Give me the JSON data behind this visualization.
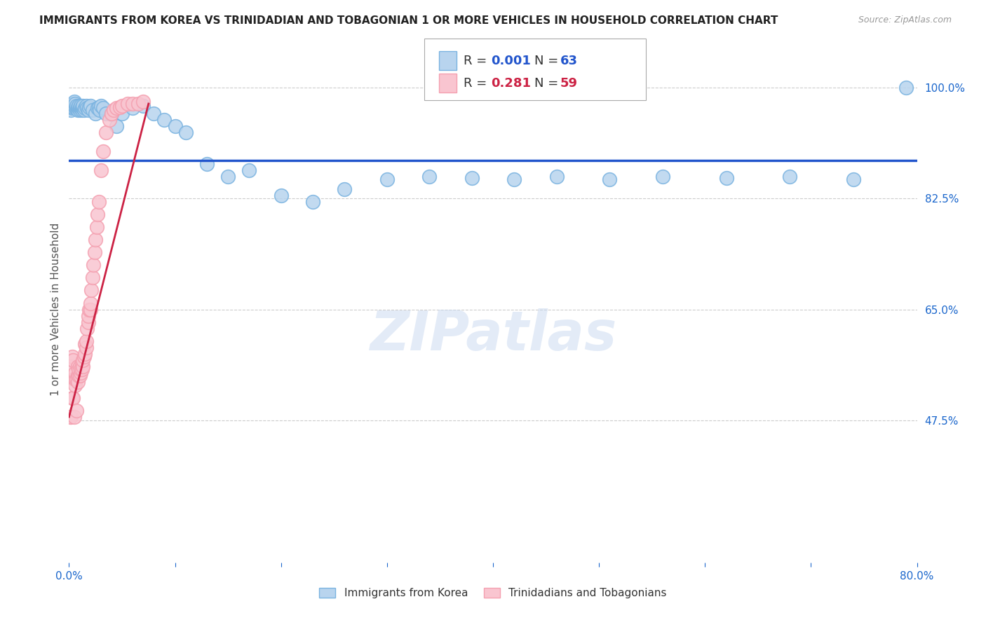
{
  "title": "IMMIGRANTS FROM KOREA VS TRINIDADIAN AND TOBAGONIAN 1 OR MORE VEHICLES IN HOUSEHOLD CORRELATION CHART",
  "source": "Source: ZipAtlas.com",
  "ylabel": "1 or more Vehicles in Household",
  "ytick_labels": [
    "100.0%",
    "82.5%",
    "65.0%",
    "47.5%"
  ],
  "ytick_values": [
    1.0,
    0.825,
    0.65,
    0.475
  ],
  "watermark": "ZIPatlas",
  "korea_color_face": "#b8d4ee",
  "korea_color_edge": "#7ab3e0",
  "trini_color_face": "#f9c5d0",
  "trini_color_edge": "#f4a0b0",
  "korea_line_color": "#2255cc",
  "trini_line_color": "#cc2244",
  "background_color": "#ffffff",
  "title_color": "#222222",
  "axis_label_color": "#1a66cc",
  "grid_color": "#cccccc",
  "korea_x": [
    0.002,
    0.003,
    0.004,
    0.004,
    0.005,
    0.005,
    0.006,
    0.006,
    0.007,
    0.007,
    0.008,
    0.008,
    0.009,
    0.009,
    0.01,
    0.01,
    0.011,
    0.011,
    0.012,
    0.012,
    0.013,
    0.013,
    0.014,
    0.015,
    0.016,
    0.017,
    0.018,
    0.019,
    0.02,
    0.022,
    0.025,
    0.027,
    0.028,
    0.029,
    0.03,
    0.032,
    0.035,
    0.04,
    0.045,
    0.05,
    0.06,
    0.07,
    0.08,
    0.09,
    0.1,
    0.11,
    0.13,
    0.15,
    0.17,
    0.2,
    0.23,
    0.26,
    0.3,
    0.34,
    0.38,
    0.42,
    0.46,
    0.51,
    0.56,
    0.62,
    0.68,
    0.74,
    0.79
  ],
  "korea_y": [
    0.965,
    0.968,
    0.97,
    0.975,
    0.972,
    0.978,
    0.97,
    0.975,
    0.968,
    0.972,
    0.965,
    0.97,
    0.968,
    0.972,
    0.965,
    0.97,
    0.968,
    0.972,
    0.965,
    0.97,
    0.968,
    0.972,
    0.965,
    0.968,
    0.972,
    0.968,
    0.965,
    0.97,
    0.972,
    0.965,
    0.96,
    0.968,
    0.97,
    0.965,
    0.972,
    0.968,
    0.96,
    0.958,
    0.94,
    0.96,
    0.968,
    0.972,
    0.96,
    0.95,
    0.94,
    0.93,
    0.88,
    0.86,
    0.87,
    0.83,
    0.82,
    0.84,
    0.855,
    0.86,
    0.858,
    0.855,
    0.86,
    0.855,
    0.86,
    0.858,
    0.86,
    0.855,
    1.0
  ],
  "trini_x": [
    0.001,
    0.002,
    0.002,
    0.003,
    0.003,
    0.004,
    0.004,
    0.005,
    0.005,
    0.006,
    0.006,
    0.006,
    0.007,
    0.007,
    0.008,
    0.008,
    0.008,
    0.009,
    0.009,
    0.01,
    0.01,
    0.011,
    0.011,
    0.012,
    0.012,
    0.013,
    0.013,
    0.014,
    0.015,
    0.015,
    0.016,
    0.016,
    0.017,
    0.018,
    0.018,
    0.019,
    0.02,
    0.02,
    0.021,
    0.022,
    0.023,
    0.024,
    0.025,
    0.026,
    0.027,
    0.028,
    0.03,
    0.032,
    0.035,
    0.038,
    0.04,
    0.042,
    0.045,
    0.048,
    0.05,
    0.055,
    0.06,
    0.065,
    0.07
  ],
  "trini_y": [
    0.48,
    0.56,
    0.48,
    0.575,
    0.51,
    0.57,
    0.51,
    0.54,
    0.48,
    0.53,
    0.54,
    0.55,
    0.54,
    0.49,
    0.545,
    0.56,
    0.535,
    0.545,
    0.555,
    0.56,
    0.545,
    0.55,
    0.555,
    0.565,
    0.555,
    0.56,
    0.57,
    0.575,
    0.58,
    0.595,
    0.59,
    0.6,
    0.62,
    0.63,
    0.64,
    0.65,
    0.65,
    0.66,
    0.68,
    0.7,
    0.72,
    0.74,
    0.76,
    0.78,
    0.8,
    0.82,
    0.87,
    0.9,
    0.93,
    0.95,
    0.96,
    0.965,
    0.968,
    0.97,
    0.972,
    0.975,
    0.975,
    0.975,
    0.978
  ],
  "xlim": [
    0.0,
    0.8
  ],
  "ylim": [
    0.25,
    1.05
  ],
  "korea_trend_x": [
    0.0,
    0.8
  ],
  "korea_trend_y": [
    0.885,
    0.885
  ],
  "trini_trend_x": [
    0.0,
    0.075
  ],
  "trini_trend_y": [
    0.48,
    0.975
  ]
}
